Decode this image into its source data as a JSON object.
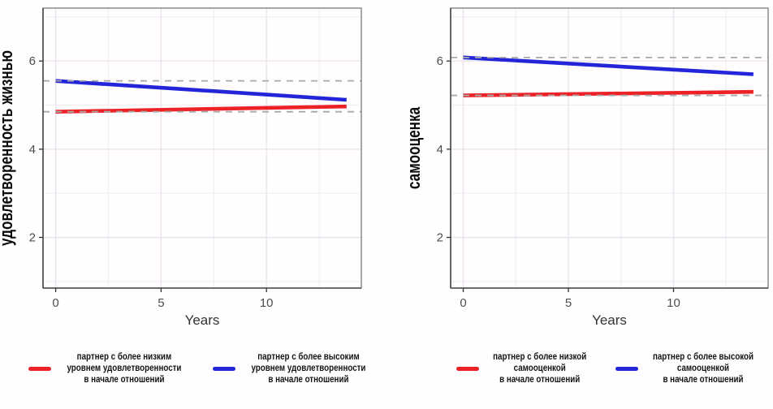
{
  "figure_title": "",
  "colors": {
    "red_line": "#EC2227",
    "blue_line": "#2326D8",
    "ref_dash": "#A9A9A9",
    "grid_major": "#E8E4ED",
    "grid_minor": "#F1EEF5",
    "panel_border": "#6E6E6E",
    "axis_line": "#474747",
    "tick_text": "#4D4D4D",
    "axis_label_text": "#333333",
    "y_title_text": "#0A0A0A",
    "background": "#FFFDFE"
  },
  "chart_data": [
    {
      "type": "line",
      "title": "",
      "xlabel": "Years",
      "ylabel": "удовлетворенность жизнью",
      "xlim": [
        -0.6,
        14.5
      ],
      "ylim": [
        0.85,
        7.2
      ],
      "x_ticks": [
        0,
        5,
        10
      ],
      "y_ticks": [
        2,
        4,
        6
      ],
      "x_minor_grid": [
        2.5,
        7.5,
        12.5
      ],
      "y_minor_grid": [
        1,
        3,
        5,
        7
      ],
      "grid": true,
      "legend_position": "bottom",
      "series": [
        {
          "name": "партнер с более низким уровнем удовлетворенности в начале отношений",
          "color": "#EC2227",
          "x": [
            0,
            13.8
          ],
          "y": [
            4.85,
            4.97
          ]
        },
        {
          "name": "партнер с более высоким уровнем удовлетворенности в начале отношений",
          "color": "#2326D8",
          "x": [
            0,
            13.8
          ],
          "y": [
            5.55,
            5.12
          ]
        }
      ],
      "ref_lines": [
        {
          "y": 5.55,
          "style": "dashed",
          "color": "#A9A9A9"
        },
        {
          "y": 4.85,
          "style": "dashed",
          "color": "#A9A9A9"
        }
      ],
      "legend": [
        {
          "color": "#EC2227",
          "lines": [
            "партнер с более низким",
            "уровнем удовлетворенности",
            "в начале отношений"
          ]
        },
        {
          "color": "#2326D8",
          "lines": [
            "партнер с более высоким",
            "уровнем удовлетворенности",
            "в начале отношений"
          ]
        }
      ]
    },
    {
      "type": "line",
      "title": "",
      "xlabel": "Years",
      "ylabel": "самооценка",
      "xlim": [
        -0.6,
        14.5
      ],
      "ylim": [
        0.85,
        7.2
      ],
      "x_ticks": [
        0,
        5,
        10
      ],
      "y_ticks": [
        2,
        4,
        6
      ],
      "x_minor_grid": [
        2.5,
        7.5,
        12.5
      ],
      "y_minor_grid": [
        1,
        3,
        5,
        7
      ],
      "grid": true,
      "legend_position": "bottom",
      "series": [
        {
          "name": "партнер с более низкой самооценкой в начале отношений",
          "color": "#EC2227",
          "x": [
            0,
            13.8
          ],
          "y": [
            5.22,
            5.3
          ]
        },
        {
          "name": "партнер с более высокой самооценкой в начале отношений",
          "color": "#2326D8",
          "x": [
            0,
            13.8
          ],
          "y": [
            6.08,
            5.7
          ]
        }
      ],
      "ref_lines": [
        {
          "y": 6.08,
          "style": "dashed",
          "color": "#A9A9A9"
        },
        {
          "y": 5.22,
          "style": "dashed",
          "color": "#A9A9A9"
        }
      ],
      "legend": [
        {
          "color": "#EC2227",
          "lines": [
            "партнер с более низкой",
            "самооценкой",
            "в начале отношений"
          ]
        },
        {
          "color": "#2326D8",
          "lines": [
            "партнер с более высокой",
            "самооценкой",
            "в начале отношений"
          ]
        }
      ]
    }
  ]
}
